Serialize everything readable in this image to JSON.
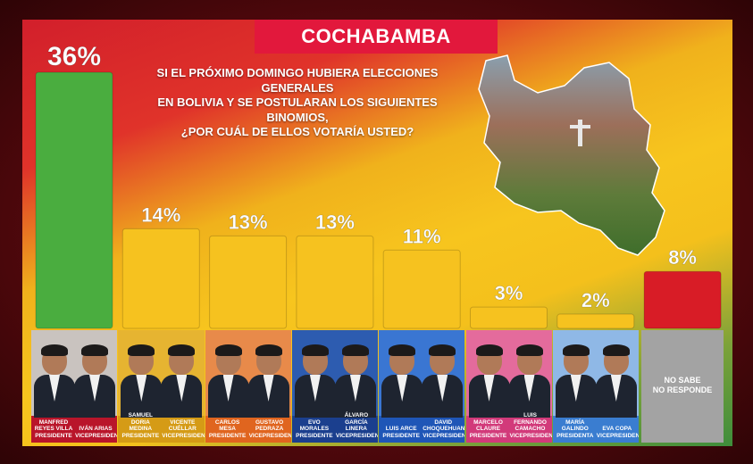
{
  "header": {
    "title": "COCHABAMBA"
  },
  "question": {
    "line1": "SI EL PRÓXIMO DOMINGO HUBIERA ELECCIONES GENERALES",
    "line2": "EN BOLIVIA Y SE POSTULARAN LOS SIGUIENTES BINOMIOS,",
    "line3": "¿POR CUÁL DE ELLOS VOTARÍA USTED?"
  },
  "colors": {
    "winner": "#4aad3f",
    "candidate": "#f6c21f",
    "undecided": "#d81c26",
    "header_bg": "#e2183c"
  },
  "chart_data": {
    "type": "bar",
    "unit": "%",
    "categories": [
      "Manfred Reyes Villa / Iván Arias",
      "Samuel Doria Medina / Vicente Cuéllar",
      "Carlos Mesa / Gustavo Pedraza",
      "Evo Morales / Álvaro García Linera",
      "Luis Arce / David Choquehuanca",
      "Marcelo Claure / Luis Fernando Camacho",
      "María Galindo / Eva Copa",
      "No sabe / No responde"
    ],
    "values": [
      36,
      14,
      13,
      13,
      11,
      3,
      2,
      8
    ],
    "value_labels": [
      "36%",
      "14%",
      "13%",
      "13%",
      "11%",
      "3%",
      "2%",
      "8%"
    ],
    "ylim": [
      0,
      36
    ]
  },
  "candidates": [
    {
      "pres_name": "MANFRED REYES VILLA",
      "pres_role": "PRESIDENTE",
      "vice_name": "IVÁN ARIAS",
      "vice_role": "VICEPRESIDENTE",
      "plate": "#b9152a",
      "bg": "#c9c3bf"
    },
    {
      "pres_name": "SAMUEL DORIA MEDINA",
      "pres_role": "PRESIDENTE",
      "vice_name": "VICENTE CUÉLLAR",
      "vice_role": "VICEPRESIDENTE",
      "plate": "#d59b16",
      "bg": "#e6b431"
    },
    {
      "pres_name": "CARLOS MESA",
      "pres_role": "PRESIDENTE",
      "vice_name": "GUSTAVO PEDRAZA",
      "vice_role": "VICEPRESIDENTE",
      "plate": "#e0651f",
      "bg": "#e88a4a"
    },
    {
      "pres_name": "EVO MORALES",
      "pres_role": "PRESIDENTE",
      "vice_name": "ÁLVARO GARCÍA LINERA",
      "vice_role": "VICEPRESIDENTE",
      "plate": "#1b3f8e",
      "bg": "#2d5cb0"
    },
    {
      "pres_name": "LUIS ARCE",
      "pres_role": "PRESIDENTE",
      "vice_name": "DAVID CHOQUEHUANCA",
      "vice_role": "VICEPRESIDENTE",
      "plate": "#1f56b7",
      "bg": "#3a76d2"
    },
    {
      "pres_name": "MARCELO CLAURE",
      "pres_role": "PRESIDENTE",
      "vice_name": "LUIS FERNANDO CAMACHO",
      "vice_role": "VICEPRESIDENTE",
      "plate": "#d23a7a",
      "bg": "#e46b9c"
    },
    {
      "pres_name": "MARÍA GALINDO",
      "pres_role": "PRESIDENTA",
      "vice_name": "EVA COPA",
      "vice_role": "VICEPRESIDENTA",
      "plate": "#3a7dd0",
      "bg": "#8fb8e6"
    }
  ],
  "undecided": {
    "line1": "NO SABE",
    "line2": "NO RESPONDE"
  },
  "icons": {
    "map": "cochabamba-map-photo",
    "person": "candidate-photo"
  }
}
